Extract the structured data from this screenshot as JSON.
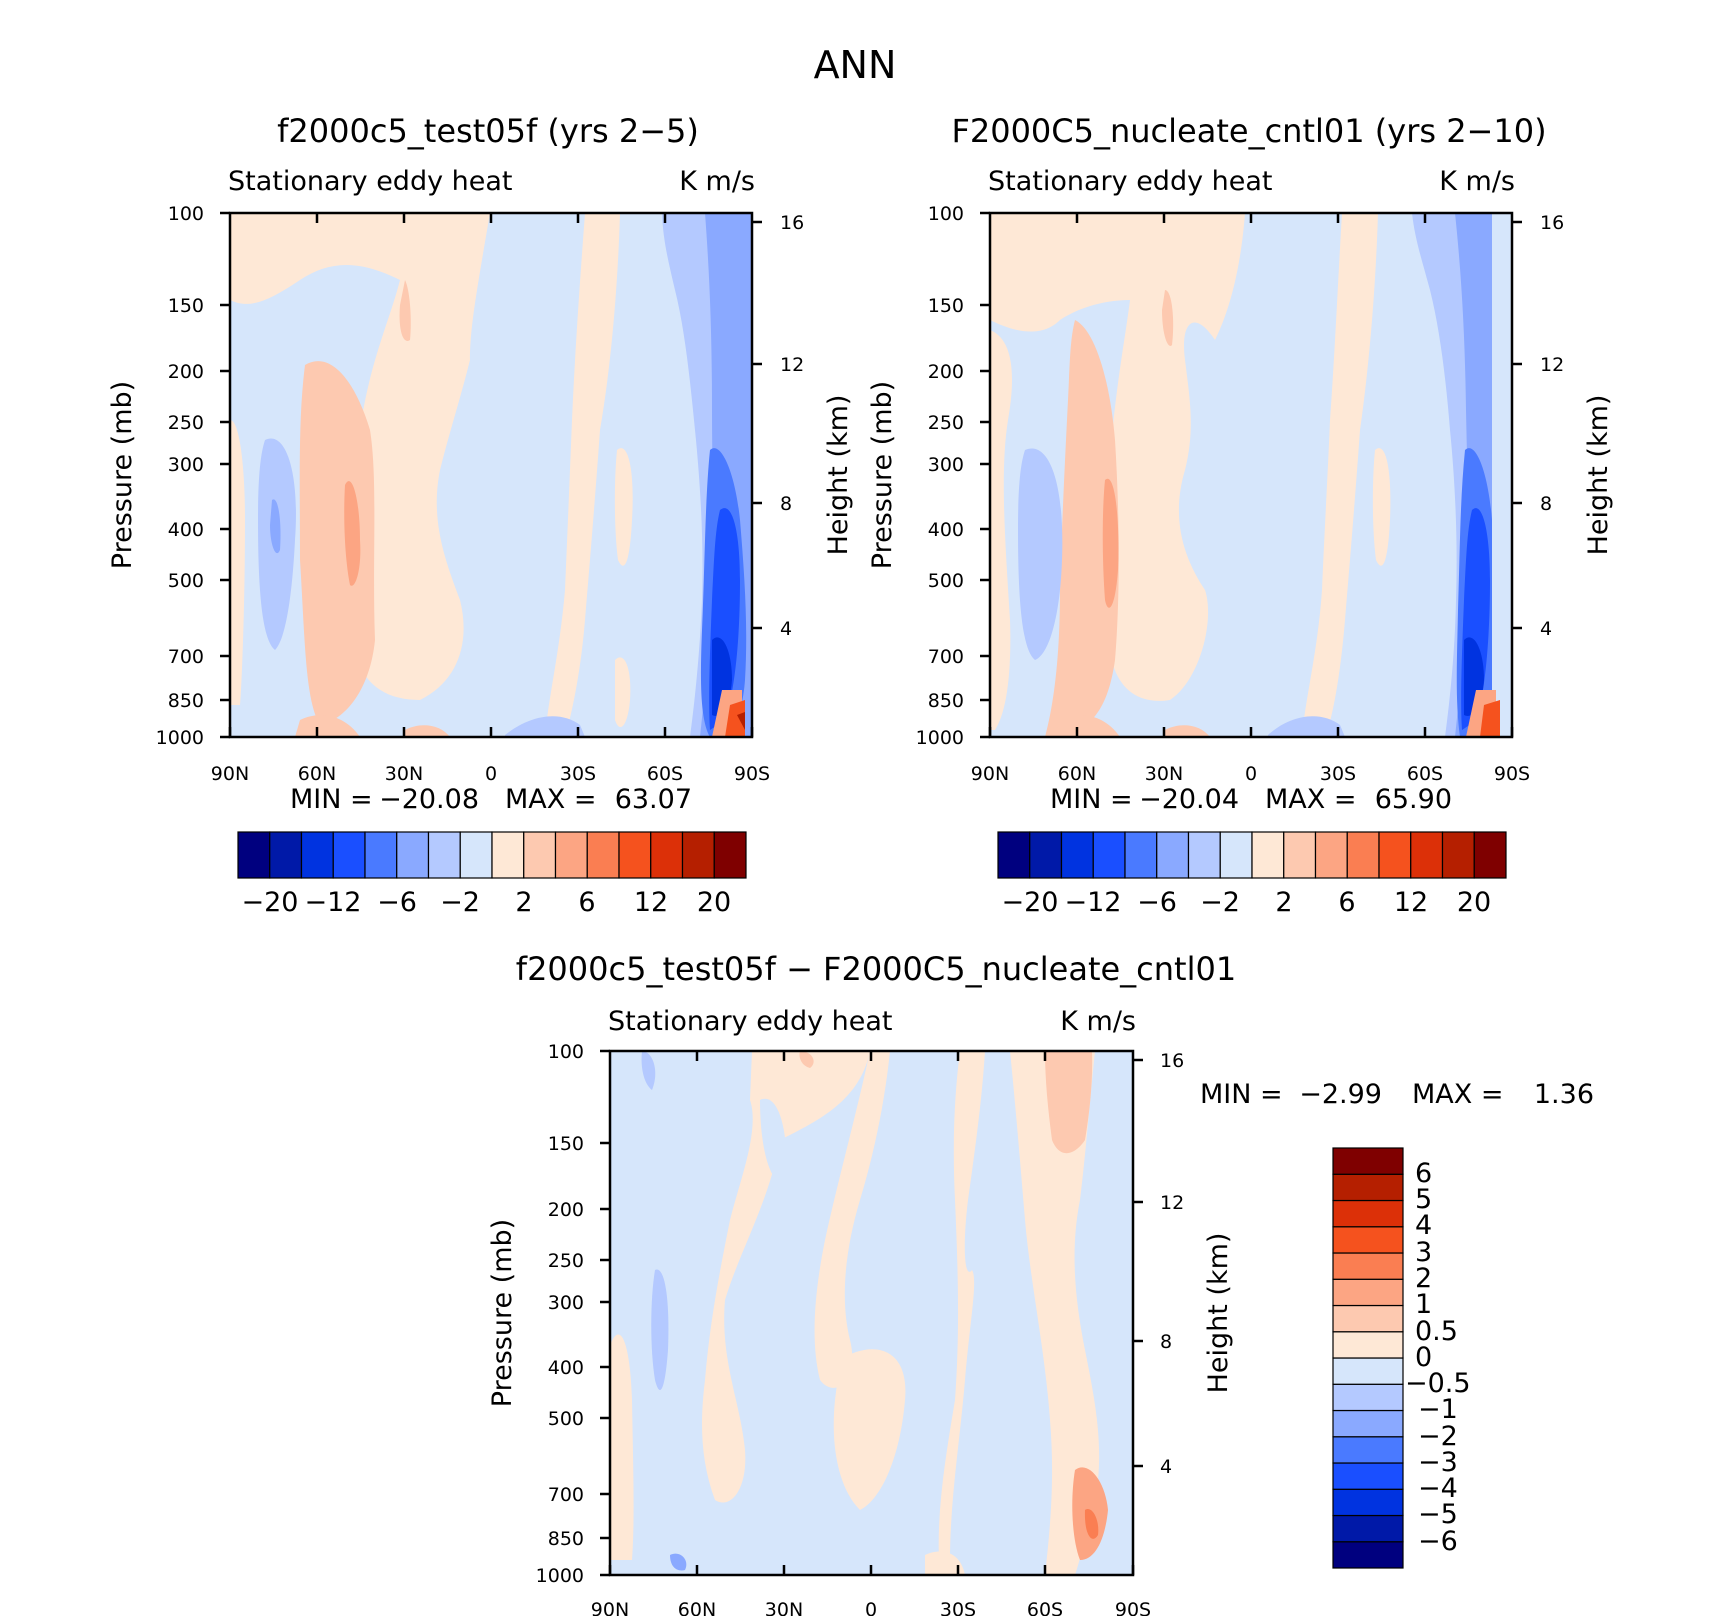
{
  "page_title": "ANN",
  "colors": {
    "scale": [
      "#00007f",
      "#0019a8",
      "#0033e0",
      "#1a4fff",
      "#4a7aff",
      "#8aa9ff",
      "#b4c9ff",
      "#d6e6fb",
      "#fee8d6",
      "#fdc9b0",
      "#fca583",
      "#fa7e52",
      "#f5521e",
      "#dc3008",
      "#b51f00",
      "#7f0000"
    ]
  },
  "chart_data": [
    {
      "type": "heatmap",
      "title": "f2000c5_test05f (yrs 2−5)",
      "subtitle_left": "Stationary eddy heat",
      "subtitle_right": "K m/s",
      "ylabel": "Pressure (mb)",
      "ylabel_right": "Height (km)",
      "x_ticks": [
        "90N",
        "60N",
        "30N",
        "0",
        "30S",
        "60S",
        "90S"
      ],
      "y_ticks": [
        "100",
        "150",
        "200",
        "250",
        "300",
        "400",
        "500",
        "700",
        "850",
        "1000"
      ],
      "y_right_ticks": [
        "16",
        "12",
        "8",
        "4"
      ],
      "min_label": "MIN =",
      "min": "−20.08",
      "max_label": "MAX =",
      "max": "63.07",
      "colorbar_labels": [
        "−20",
        "−12",
        "−6",
        "−2",
        "2",
        "6",
        "12",
        "20"
      ],
      "colorbar_orientation": "horizontal"
    },
    {
      "type": "heatmap",
      "title": "F2000C5_nucleate_cntl01 (yrs 2−10)",
      "subtitle_left": "Stationary eddy heat",
      "subtitle_right": "K m/s",
      "ylabel": "Pressure (mb)",
      "ylabel_right": "Height (km)",
      "x_ticks": [
        "90N",
        "60N",
        "30N",
        "0",
        "30S",
        "60S",
        "90S"
      ],
      "y_ticks": [
        "100",
        "150",
        "200",
        "250",
        "300",
        "400",
        "500",
        "700",
        "850",
        "1000"
      ],
      "y_right_ticks": [
        "16",
        "12",
        "8",
        "4"
      ],
      "min_label": "MIN =",
      "min": "−20.04",
      "max_label": "MAX =",
      "max": "65.90",
      "colorbar_labels": [
        "−20",
        "−12",
        "−6",
        "−2",
        "2",
        "6",
        "12",
        "20"
      ],
      "colorbar_orientation": "horizontal"
    },
    {
      "type": "heatmap",
      "title": "f2000c5_test05f − F2000C5_nucleate_cntl01",
      "subtitle_left": "Stationary eddy heat",
      "subtitle_right": "K m/s",
      "ylabel": "Pressure (mb)",
      "ylabel_right": "Height (km)",
      "x_ticks": [
        "90N",
        "60N",
        "30N",
        "0",
        "30S",
        "60S",
        "90S"
      ],
      "y_ticks": [
        "100",
        "150",
        "200",
        "250",
        "300",
        "400",
        "500",
        "700",
        "850",
        "1000"
      ],
      "y_right_ticks": [
        "16",
        "12",
        "8",
        "4"
      ],
      "min_label": "MIN =",
      "min": "−2.99",
      "max_label": "MAX =",
      "max": "1.36",
      "colorbar_labels": [
        "6",
        "5",
        "4",
        "3",
        "2",
        "1",
        "0.5",
        "0",
        "−0.5",
        "−1",
        "−2",
        "−3",
        "−4",
        "−5",
        "−6"
      ],
      "colorbar_orientation": "vertical"
    }
  ]
}
